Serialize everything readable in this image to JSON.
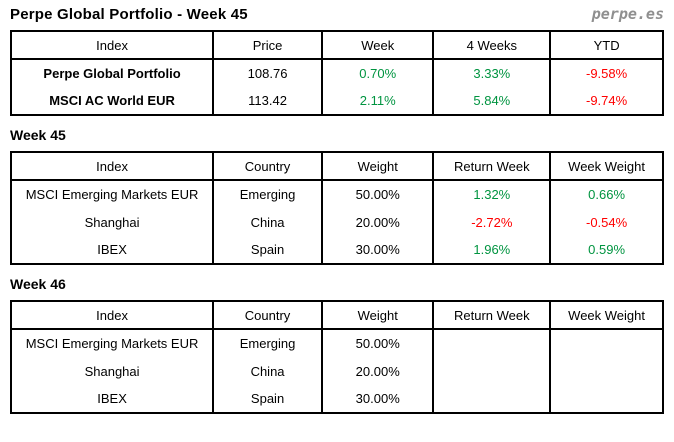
{
  "header": {
    "title": "Perpe Global Portfolio - Week 45",
    "logo": "perpe.es"
  },
  "colors": {
    "positive": "#009440",
    "negative": "#ff0000",
    "logo": "#8f8f8f",
    "border": "#000000",
    "text": "#000000"
  },
  "summary_table": {
    "headers": [
      "Index",
      "Price",
      "Week",
      "4 Weeks",
      "YTD"
    ],
    "rows": [
      {
        "index": "Perpe Global Portfolio",
        "price": "108.76",
        "week": "0.70%",
        "four_weeks": "3.33%",
        "ytd": "-9.58%"
      },
      {
        "index": "MSCI AC World EUR",
        "price": "113.42",
        "week": "2.11%",
        "four_weeks": "5.84%",
        "ytd": "-9.74%"
      }
    ]
  },
  "week45": {
    "heading": "Week 45",
    "headers": [
      "Index",
      "Country",
      "Weight",
      "Return Week",
      "Week Weight"
    ],
    "rows": [
      {
        "index": "MSCI Emerging Markets EUR",
        "country": "Emerging",
        "weight": "50.00%",
        "return_week": "1.32%",
        "week_weight": "0.66%"
      },
      {
        "index": "Shanghai",
        "country": "China",
        "weight": "20.00%",
        "return_week": "-2.72%",
        "week_weight": "-0.54%"
      },
      {
        "index": "IBEX",
        "country": "Spain",
        "weight": "30.00%",
        "return_week": "1.96%",
        "week_weight": "0.59%"
      }
    ]
  },
  "week46": {
    "heading": "Week 46",
    "headers": [
      "Index",
      "Country",
      "Weight",
      "Return Week",
      "Week Weight"
    ],
    "rows": [
      {
        "index": "MSCI Emerging Markets EUR",
        "country": "Emerging",
        "weight": "50.00%",
        "return_week": "",
        "week_weight": ""
      },
      {
        "index": "Shanghai",
        "country": "China",
        "weight": "20.00%",
        "return_week": "",
        "week_weight": ""
      },
      {
        "index": "IBEX",
        "country": "Spain",
        "weight": "30.00%",
        "return_week": "",
        "week_weight": ""
      }
    ]
  }
}
